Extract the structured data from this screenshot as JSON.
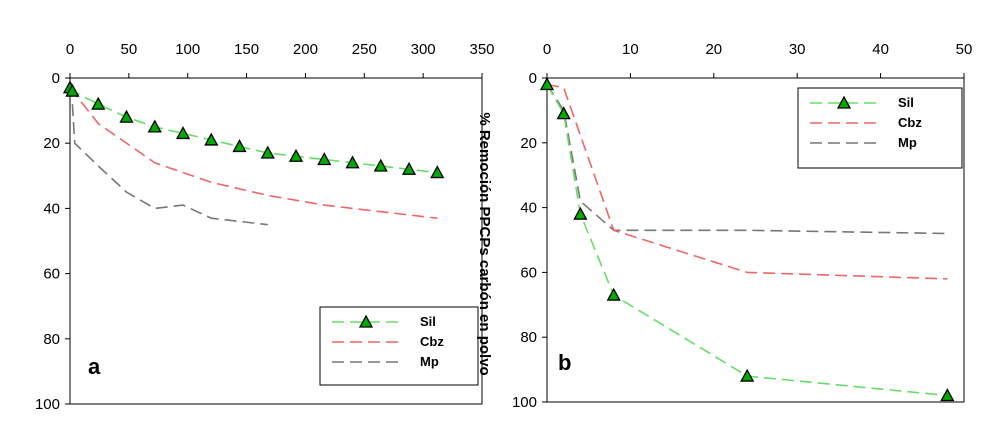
{
  "shared_ylabel": "% Remoción PPCPs carbón en polvo",
  "colors": {
    "Sil": "#66dd66",
    "Cbz": "#ee6666",
    "Mp": "#777777",
    "marker_fill": "#00aa00"
  },
  "chart_data": [
    {
      "type": "line",
      "panel_label": "a",
      "xlim": [
        0,
        350
      ],
      "ylim": [
        0,
        100
      ],
      "x_ticks": [
        "0",
        "50",
        "100",
        "150",
        "200",
        "250",
        "300",
        "350"
      ],
      "y_ticks": [
        "0",
        "20",
        "40",
        "60",
        "80",
        "100"
      ],
      "y_inverted": true,
      "legend_position": "bottom-right",
      "series": [
        {
          "name": "Sil",
          "markers": true,
          "x": [
            0,
            2,
            24,
            48,
            72,
            96,
            120,
            144,
            168,
            192,
            216,
            240,
            264,
            288,
            312
          ],
          "y": [
            3,
            4,
            8,
            12,
            15,
            17,
            19,
            21,
            23,
            24,
            25,
            26,
            27,
            28,
            29
          ]
        },
        {
          "name": "Cbz",
          "markers": false,
          "x": [
            0,
            24,
            72,
            120,
            168,
            216,
            264,
            312
          ],
          "y": [
            3,
            14,
            26,
            32,
            36,
            39,
            41,
            43
          ]
        },
        {
          "name": "Mp",
          "markers": false,
          "x": [
            2,
            4,
            24,
            48,
            72,
            96,
            120,
            144,
            168
          ],
          "y": [
            8,
            20,
            27,
            35,
            40,
            39,
            43,
            44,
            45
          ]
        }
      ]
    },
    {
      "type": "line",
      "panel_label": "b",
      "xlim": [
        0,
        50
      ],
      "ylim": [
        0,
        100
      ],
      "x_ticks": [
        "0",
        "10",
        "20",
        "30",
        "40",
        "50"
      ],
      "y_ticks": [
        "0",
        "20",
        "40",
        "60",
        "80",
        "100"
      ],
      "y_inverted": true,
      "legend_position": "top-right",
      "series": [
        {
          "name": "Sil",
          "markers": true,
          "x": [
            0,
            2,
            4,
            8,
            24,
            48
          ],
          "y": [
            2,
            11,
            42,
            67,
            92,
            98
          ]
        },
        {
          "name": "Cbz",
          "markers": false,
          "x": [
            0,
            2,
            8,
            24,
            48
          ],
          "y": [
            2,
            3,
            47,
            60,
            62
          ]
        },
        {
          "name": "Mp",
          "markers": false,
          "x": [
            0,
            2,
            4,
            8,
            24,
            48
          ],
          "y": [
            2,
            10,
            38,
            47,
            47,
            48
          ]
        }
      ]
    }
  ]
}
